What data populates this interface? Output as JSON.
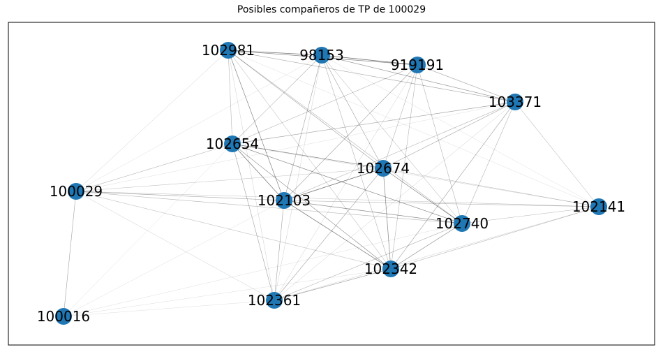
{
  "title": "Posibles compañeros de TP de 100029",
  "colors": {
    "node": "#1f77b4",
    "edge": "#000000",
    "frame": "#000000"
  },
  "nodes": [
    {
      "id": "102981",
      "label": "102981"
    },
    {
      "id": "98153",
      "label": "98153"
    },
    {
      "id": "919191",
      "label": "919191"
    },
    {
      "id": "103371",
      "label": "103371"
    },
    {
      "id": "102654",
      "label": "102654"
    },
    {
      "id": "102674",
      "label": "102674"
    },
    {
      "id": "100029",
      "label": "100029"
    },
    {
      "id": "102103",
      "label": "102103"
    },
    {
      "id": "102141",
      "label": "102141"
    },
    {
      "id": "102740",
      "label": "102740"
    },
    {
      "id": "102342",
      "label": "102342"
    },
    {
      "id": "102361",
      "label": "102361"
    },
    {
      "id": "100016",
      "label": "100016"
    }
  ],
  "edges": [
    [
      "102981",
      "98153",
      0.5
    ],
    [
      "102981",
      "919191",
      0.45
    ],
    [
      "98153",
      "919191",
      0.55
    ],
    [
      "102981",
      "103371",
      0.35
    ],
    [
      "98153",
      "103371",
      0.4
    ],
    [
      "919191",
      "103371",
      0.35
    ],
    [
      "102981",
      "102654",
      0.3
    ],
    [
      "102981",
      "102674",
      0.35
    ],
    [
      "102981",
      "102103",
      0.45
    ],
    [
      "102981",
      "102740",
      0.3
    ],
    [
      "102981",
      "102342",
      0.25
    ],
    [
      "102981",
      "100029",
      0.2
    ],
    [
      "102981",
      "102141",
      0.15
    ],
    [
      "102981",
      "102361",
      0.2
    ],
    [
      "98153",
      "102654",
      0.3
    ],
    [
      "98153",
      "102674",
      0.35
    ],
    [
      "98153",
      "102103",
      0.35
    ],
    [
      "98153",
      "102740",
      0.25
    ],
    [
      "98153",
      "102342",
      0.3
    ],
    [
      "98153",
      "102361",
      0.2
    ],
    [
      "98153",
      "102141",
      0.15
    ],
    [
      "98153",
      "100029",
      0.15
    ],
    [
      "919191",
      "102654",
      0.3
    ],
    [
      "919191",
      "102674",
      0.3
    ],
    [
      "919191",
      "102103",
      0.35
    ],
    [
      "919191",
      "102740",
      0.3
    ],
    [
      "919191",
      "102342",
      0.3
    ],
    [
      "919191",
      "102361",
      0.2
    ],
    [
      "103371",
      "102654",
      0.35
    ],
    [
      "103371",
      "102674",
      0.35
    ],
    [
      "103371",
      "102103",
      0.3
    ],
    [
      "103371",
      "102740",
      0.3
    ],
    [
      "103371",
      "102342",
      0.35
    ],
    [
      "103371",
      "102141",
      0.25
    ],
    [
      "103371",
      "100029",
      0.15
    ],
    [
      "103371",
      "102361",
      0.2
    ],
    [
      "102654",
      "102674",
      0.45
    ],
    [
      "102654",
      "102103",
      0.5
    ],
    [
      "102654",
      "102740",
      0.45
    ],
    [
      "102654",
      "102342",
      0.4
    ],
    [
      "102654",
      "102361",
      0.35
    ],
    [
      "102654",
      "100029",
      0.3
    ],
    [
      "102654",
      "100016",
      0.15
    ],
    [
      "102654",
      "102141",
      0.2
    ],
    [
      "102674",
      "102103",
      0.55
    ],
    [
      "102674",
      "102740",
      0.45
    ],
    [
      "102674",
      "102342",
      0.45
    ],
    [
      "102674",
      "102361",
      0.35
    ],
    [
      "102674",
      "102141",
      0.25
    ],
    [
      "102674",
      "100029",
      0.25
    ],
    [
      "102103",
      "102740",
      0.45
    ],
    [
      "102103",
      "102342",
      0.5
    ],
    [
      "102103",
      "102361",
      0.35
    ],
    [
      "102103",
      "100029",
      0.35
    ],
    [
      "102103",
      "102141",
      0.3
    ],
    [
      "102103",
      "100016",
      0.15
    ],
    [
      "102740",
      "102342",
      0.4
    ],
    [
      "102740",
      "102361",
      0.3
    ],
    [
      "102740",
      "102141",
      0.3
    ],
    [
      "102740",
      "100029",
      0.3
    ],
    [
      "102740",
      "100016",
      0.15
    ],
    [
      "102342",
      "102361",
      0.35
    ],
    [
      "102342",
      "102141",
      0.3
    ],
    [
      "102342",
      "100029",
      0.25
    ],
    [
      "102342",
      "100016",
      0.15
    ],
    [
      "102361",
      "100016",
      0.15
    ],
    [
      "102361",
      "100029",
      0.2
    ],
    [
      "102361",
      "102141",
      0.2
    ],
    [
      "100029",
      "100016",
      0.35
    ],
    [
      "100029",
      "102141",
      0.25
    ]
  ]
}
